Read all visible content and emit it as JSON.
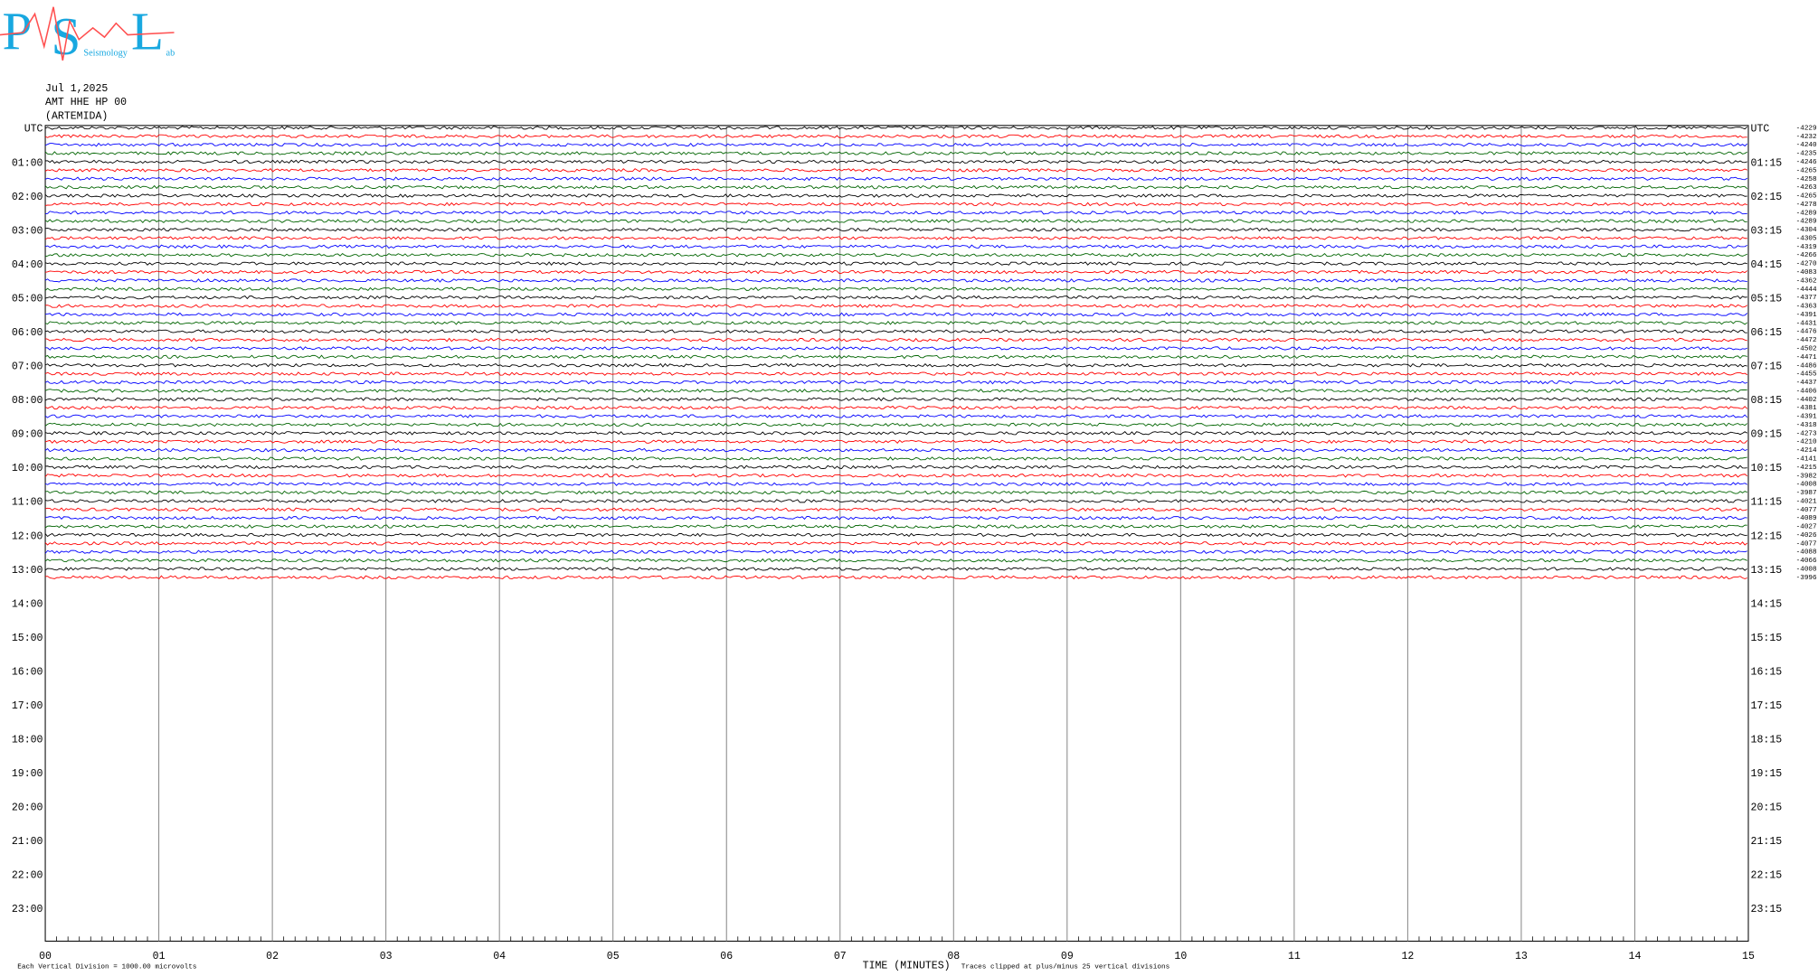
{
  "logo": {
    "letters": [
      "P",
      "S",
      "L"
    ],
    "small": [
      "Seismology",
      "ab"
    ]
  },
  "header": {
    "date": "Jul 1,2025",
    "station": "AMT HHE HP 00",
    "site": "(ARTEMIDA)"
  },
  "left_labels": [
    "UTC",
    "01:00",
    "02:00",
    "03:00",
    "04:00",
    "05:00",
    "06:00",
    "07:00",
    "08:00",
    "09:00",
    "10:00",
    "11:00",
    "12:00",
    "13:00",
    "14:00",
    "15:00",
    "16:00",
    "17:00",
    "18:00",
    "19:00",
    "20:00",
    "21:00",
    "22:00",
    "23:00"
  ],
  "right_labels": [
    "UTC",
    "01:15",
    "02:15",
    "03:15",
    "04:15",
    "05:15",
    "06:15",
    "07:15",
    "08:15",
    "09:15",
    "10:15",
    "11:15",
    "12:15",
    "13:15",
    "14:15",
    "15:15",
    "16:15",
    "17:15",
    "18:15",
    "19:15",
    "20:15",
    "21:15",
    "22:15",
    "23:15"
  ],
  "x_labels": [
    "00",
    "01",
    "02",
    "03",
    "04",
    "05",
    "06",
    "07",
    "08",
    "09",
    "10",
    "11",
    "12",
    "13",
    "14",
    "15"
  ],
  "x_title": "TIME (MINUTES)",
  "footer": {
    "division": "Each Vertical Division = 1000.00 microvolts",
    "clip": "Traces clipped at plus/minus 25 vertical divisions"
  },
  "trace_colors": [
    "#000000",
    "#ff0000",
    "#0000ff",
    "#006400"
  ],
  "trace_labels": [
    "-4229",
    "-4232",
    "-4240",
    "-4235",
    "-4246",
    "-4265",
    "-4258",
    "-4263",
    "-4265",
    "-4278",
    "-4289",
    "-4289",
    "-4304",
    "-4305",
    "-4319",
    "-4266",
    "-4270",
    "-4083",
    "-4362",
    "-4444",
    "-4377",
    "-4363",
    "-4391",
    "-4431",
    "-4476",
    "-4472",
    "-4502",
    "-4471",
    "-4486",
    "-4455",
    "-4437",
    "-4406",
    "-4402",
    "-4381",
    "-4391",
    "-4318",
    "-4273",
    "-4210",
    "-4214",
    "-4141",
    "-4215",
    "-3982",
    "-4008",
    "-3987",
    "-4021",
    "-4077",
    "-4089",
    "-4027",
    "-4026",
    "-4077",
    "-4088",
    "-4066",
    "-4008",
    "-3996"
  ]
}
